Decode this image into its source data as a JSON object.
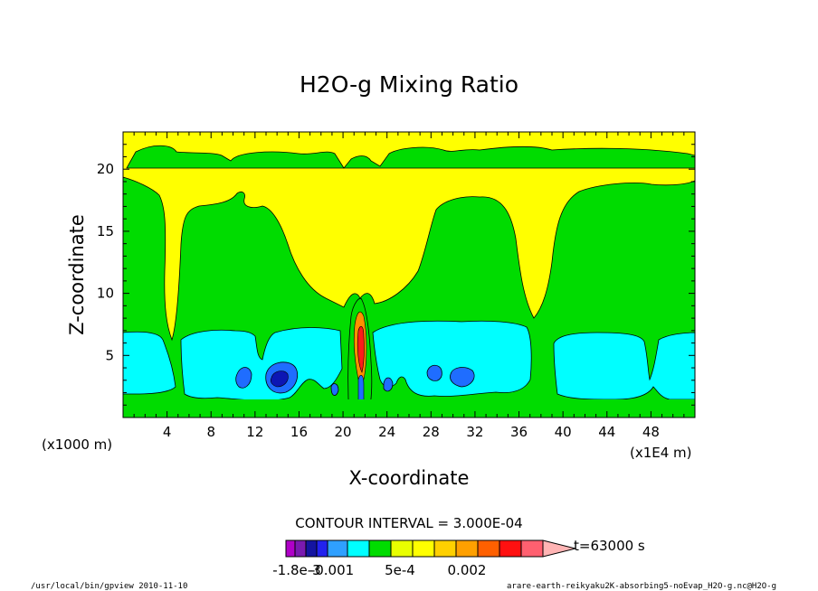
{
  "chart_data": {
    "type": "heatmap",
    "title": "H2O-g Mixing Ratio",
    "xlabel": "X-coordinate",
    "ylabel": "Z-coordinate",
    "x_unit_label": "(x1E4 m)",
    "y_unit_label": "(x1000 m)",
    "xlim": [
      0,
      52
    ],
    "ylim": [
      0,
      23
    ],
    "x_ticks": [
      4,
      8,
      12,
      16,
      20,
      24,
      28,
      32,
      36,
      40,
      44,
      48
    ],
    "y_ticks": [
      5,
      10,
      15,
      20
    ],
    "contour_interval_text": "CONTOUR INTERVAL = 3.000E-04",
    "time_label": "t=63000 s",
    "colorbar_labels": [
      "-1.8e-3",
      "-0.001",
      "5e-4",
      "0.002"
    ],
    "colorbar_colors": [
      "#b000c8",
      "#7a1ab0",
      "#1414a0",
      "#2222ee",
      "#2fa0ff",
      "#00ffff",
      "#00dc00",
      "#e8ff00",
      "#ffff00",
      "#ffd000",
      "#ffa000",
      "#ff6000",
      "#ff1010",
      "#ff6070",
      "#ffb4b4"
    ],
    "fill_colors": {
      "background": "#ffff00",
      "green": "#00dc00",
      "cyan": "#00ffff",
      "light_blue": "#1f6dff",
      "dark_blue": "#0c16b4",
      "orange": "#ff9000",
      "red": "#ff1a1a",
      "line": "#000000"
    }
  },
  "footer": {
    "left": "/usr/local/bin/gpview  2010-11-10",
    "right": "arare-earth-reikyaku2K-absorbing5-noEvap_H2O-g.nc@H2O-g"
  }
}
